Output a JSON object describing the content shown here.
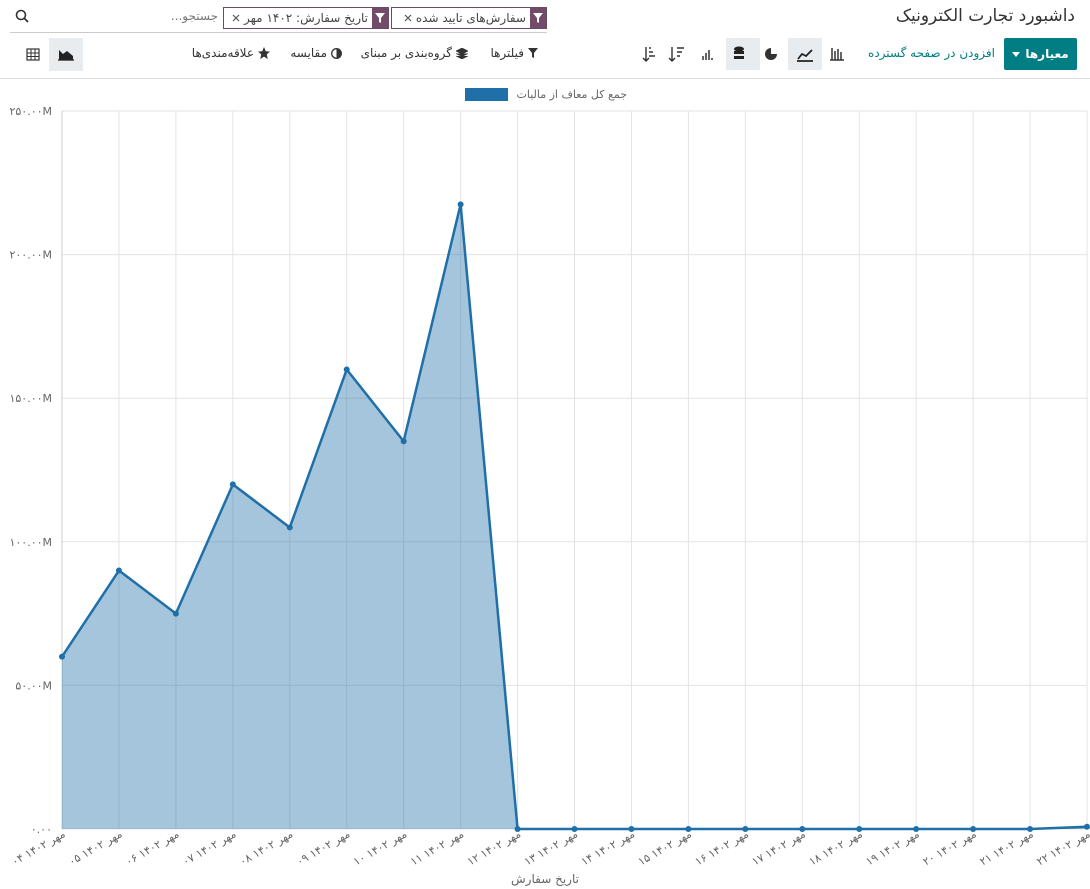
{
  "ui": {
    "title": "داشبورد تجارت الکترونیک",
    "facets": [
      "سفارش‌های تایید شده",
      "تاریخ سفارش: ۱۴۰۲ مهر"
    ],
    "search_placeholder": "جستجو...",
    "measures": "معیارها",
    "insert": "افزودن در صفحه گسترده",
    "filters": "فیلترها",
    "groupby": "گروه‌بندی بر مبنای",
    "compare": "مقایسه",
    "favorites": "علاقه‌مندی‌ها"
  },
  "chart_data": {
    "type": "line",
    "x_label": "تاریخ سفارش",
    "categories": [
      "۰۴ مهر ۱۴۰۲",
      "۰۵ مهر ۱۴۰۲",
      "۰۶ مهر ۱۴۰۲",
      "۰۷ مهر ۱۴۰۲",
      "۰۸ مهر ۱۴۰۲",
      "۰۹ مهر ۱۴۰۲",
      "۱۰ مهر ۱۴۰۲",
      "۱۱ مهر ۱۴۰۲",
      "۱۲ مهر ۱۴۰۲",
      "۱۳ مهر ۱۴۰۲",
      "۱۴ مهر ۱۴۰۲",
      "۱۵ مهر ۱۴۰۲",
      "۱۶ مهر ۱۴۰۲",
      "۱۷ مهر ۱۴۰۲",
      "۱۸ مهر ۱۴۰۲",
      "۱۹ مهر ۱۴۰۲",
      "۲۰ مهر ۱۴۰۲",
      "۲۱ مهر ۱۴۰۲",
      "۲۲ مهر ۱۴۰۲"
    ],
    "series": [
      {
        "name": "جمع کل معاف از مالیات",
        "color": "#1f6fa8",
        "values": [
          60000000,
          90000000,
          75000000,
          120000000,
          105000000,
          160000000,
          135000000,
          217500000,
          0,
          0,
          0,
          0,
          0,
          0,
          0,
          0,
          0,
          0,
          800000
        ]
      }
    ],
    "ylim": [
      0,
      250000000
    ],
    "yticks": [
      {
        "value": 0,
        "label": "۰.۰۰"
      },
      {
        "value": 50000000,
        "label": "۵۰.۰۰M"
      },
      {
        "value": 100000000,
        "label": "۱۰۰.۰۰M"
      },
      {
        "value": 150000000,
        "label": "۱۵۰.۰۰M"
      },
      {
        "value": 200000000,
        "label": "۲۰۰.۰۰M"
      },
      {
        "value": 250000000,
        "label": "۲۵۰.۰۰M"
      }
    ],
    "grid": true,
    "area": true
  }
}
